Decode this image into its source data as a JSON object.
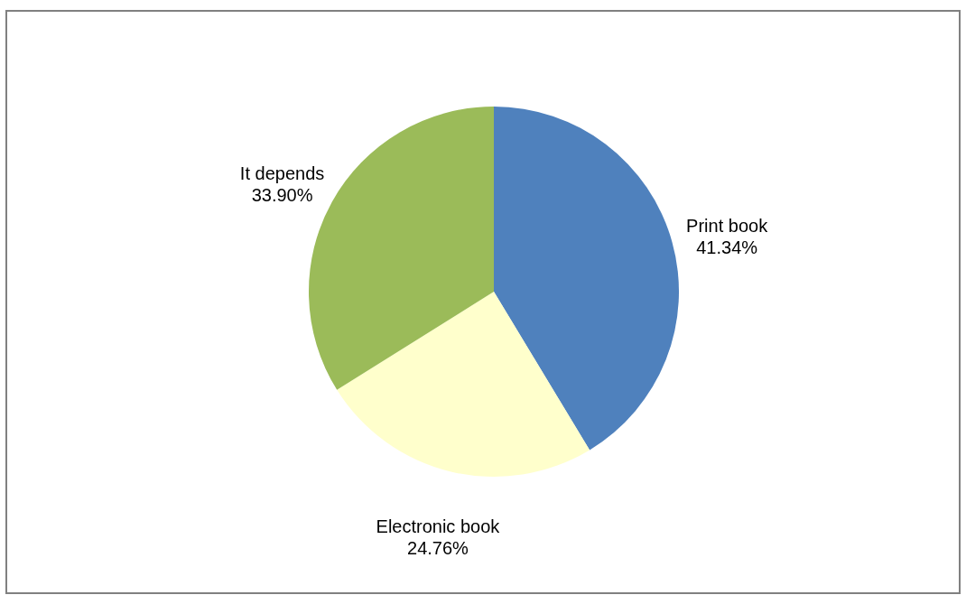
{
  "chart_data": {
    "type": "pie",
    "categories": [
      "Print book",
      "Electronic book",
      "It depends"
    ],
    "values": [
      41.34,
      24.76,
      33.9
    ],
    "value_labels": [
      "41.34%",
      "24.76%",
      "33.90%"
    ],
    "colors": [
      "#4f81bd",
      "#ffffcc",
      "#9bbb59"
    ]
  }
}
